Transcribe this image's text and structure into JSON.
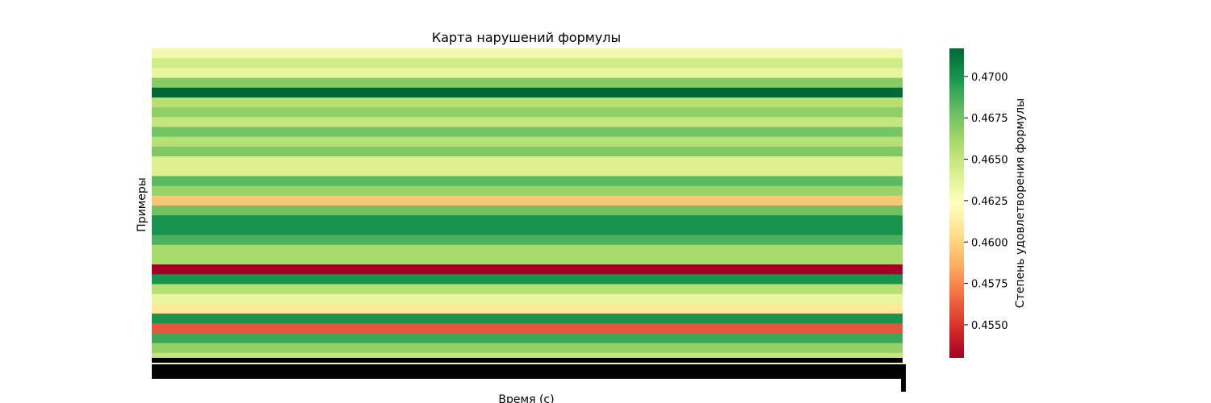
{
  "chart_data": {
    "type": "heatmap",
    "title": "Карта нарушений формулы",
    "xlabel": "Время (с)",
    "ylabel": "Примеры",
    "colorbar_label": "Степень удовлетворения формулы",
    "colormap": "RdYlGn",
    "vmin": 0.453,
    "vmax": 0.4717,
    "colorbar_ticks": [
      0.455,
      0.4575,
      0.46,
      0.4625,
      0.465,
      0.4675,
      0.47
    ],
    "colorbar_tick_labels": [
      "0.4550",
      "0.4575",
      "0.4600",
      "0.4625",
      "0.4650",
      "0.4675",
      "0.4700"
    ],
    "note": "Values are constant across time for each example (horizontal bands).",
    "row_values": [
      0.463,
      0.4645,
      0.4635,
      0.467,
      0.4717,
      0.4655,
      0.4668,
      0.465,
      0.4675,
      0.4655,
      0.4672,
      0.464,
      0.464,
      0.4682,
      0.4665,
      0.4595,
      0.4676,
      0.47,
      0.47,
      0.4686,
      0.466,
      0.466,
      0.453,
      0.47,
      0.4655,
      0.4635,
      0.461,
      0.47,
      0.456,
      0.469,
      0.4666,
      0.465
    ],
    "colors": {
      "tick_text": "#000000",
      "axis": "#000000"
    }
  }
}
